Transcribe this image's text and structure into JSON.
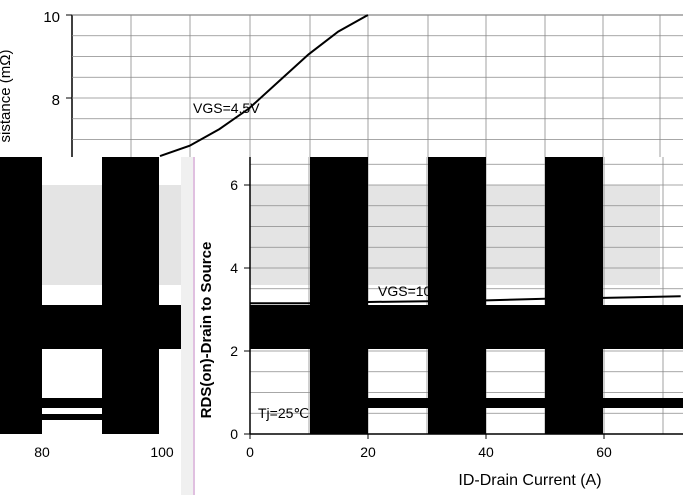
{
  "chart_data": [
    {
      "type": "line",
      "title": "",
      "xlabel": "",
      "ylabel": "sistance (mΩ)",
      "ylim": [
        6.6,
        10
      ],
      "y_ticks": [
        "10",
        "8"
      ],
      "x_ticks": [
        "80",
        "100"
      ],
      "grid": true,
      "annotations": [
        "VGS=4.5V"
      ],
      "series": [
        {
          "name": "VGS=4.5V",
          "x": [
            0,
            3,
            6,
            9,
            12,
            15,
            18,
            21
          ],
          "y": [
            6.6,
            6.85,
            7.25,
            7.75,
            8.4,
            9.05,
            9.6,
            10.0
          ]
        }
      ]
    },
    {
      "type": "line",
      "title": "",
      "xlabel": "ID-Drain Current (A)",
      "ylabel": "RDS(on)-Drain to Source",
      "ylim": [
        0,
        7
      ],
      "xlim": [
        0,
        73
      ],
      "y_ticks": [
        "0",
        "2",
        "4",
        "6"
      ],
      "x_ticks": [
        "0",
        "20",
        "40",
        "60"
      ],
      "grid": true,
      "annotations": [
        "VGS=10V",
        "Tj=25℃"
      ],
      "series": [
        {
          "name": "VGS=10V",
          "x": [
            0,
            10,
            20,
            30,
            40,
            50,
            60,
            73
          ],
          "y": [
            3.15,
            3.15,
            3.18,
            3.2,
            3.22,
            3.26,
            3.28,
            3.32
          ]
        }
      ]
    }
  ]
}
